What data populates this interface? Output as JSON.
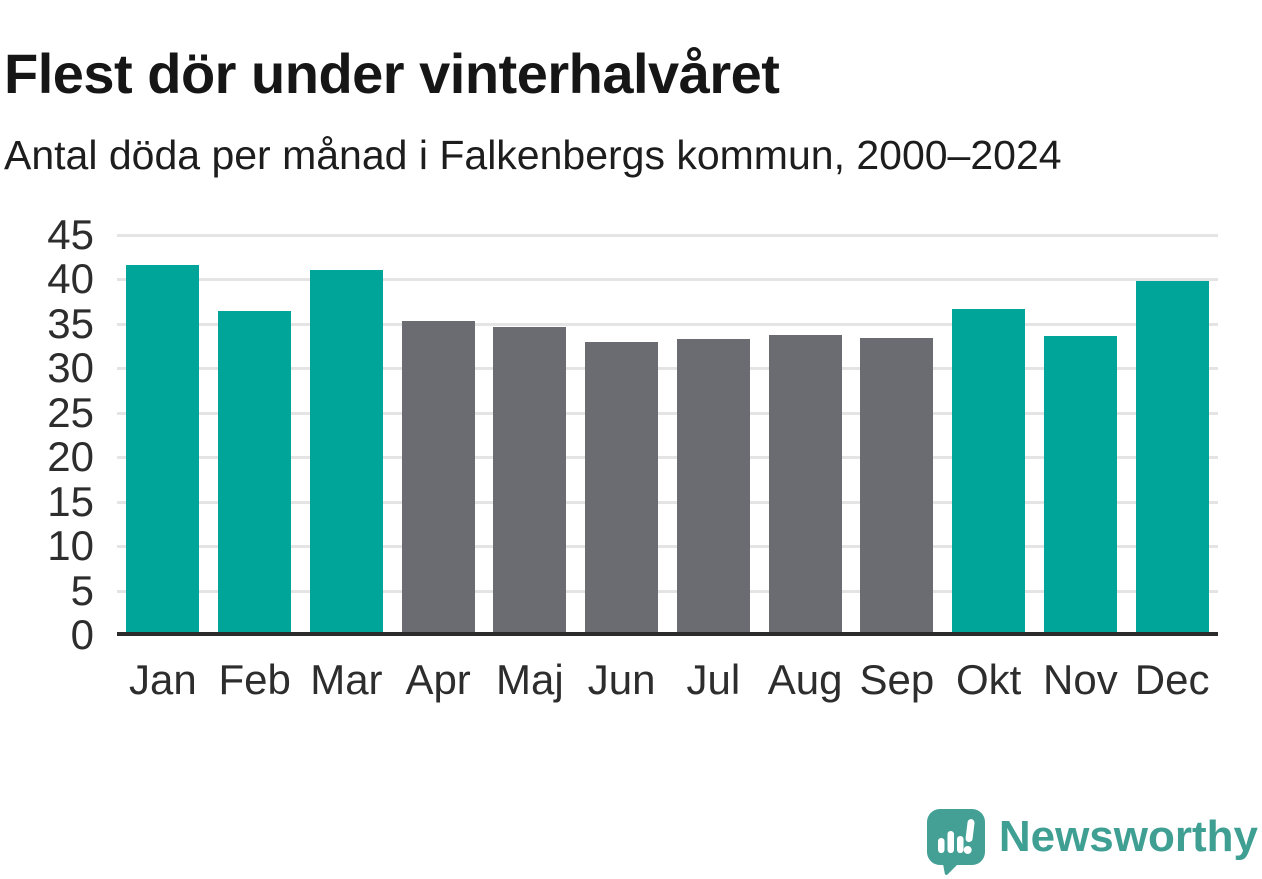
{
  "header": {
    "title": "Flest dör under vinterhalvåret",
    "subtitle": "Antal döda per månad i Falkenbergs kommun, 2000–2024"
  },
  "chart_data": {
    "type": "bar",
    "title": "Flest dör under vinterhalvåret",
    "subtitle": "Antal döda per månad i Falkenbergs kommun, 2000–2024",
    "categories": [
      "Jan",
      "Feb",
      "Mar",
      "Apr",
      "Maj",
      "Jun",
      "Jul",
      "Aug",
      "Sep",
      "Okt",
      "Nov",
      "Dec"
    ],
    "values": [
      41.6,
      36.5,
      41.1,
      35.3,
      34.6,
      33.0,
      33.3,
      33.8,
      33.4,
      36.7,
      33.6,
      39.8
    ],
    "bar_colors": [
      "#00a59a",
      "#00a59a",
      "#00a59a",
      "#6b6b72",
      "#6b6b72",
      "#6b6b72",
      "#6b6b72",
      "#6b6b72",
      "#6b6b72",
      "#00a59a",
      "#00a59a",
      "#00a59a"
    ],
    "xlabel": "",
    "ylabel": "",
    "ylim": [
      0,
      45
    ],
    "yticks": [
      0,
      5,
      10,
      15,
      20,
      25,
      30,
      35,
      40,
      45
    ],
    "grid": "horizontal",
    "legend": "none"
  },
  "footer": {
    "brand": "Newsworthy"
  },
  "colors": {
    "teal": "#00a59a",
    "gray": "#6b6b72",
    "gridline": "#e4e4e4",
    "axis_line": "#2b2b2b",
    "title_text": "#161616",
    "tick_text": "#2d2d2d",
    "brand_teal": "#44a095"
  }
}
